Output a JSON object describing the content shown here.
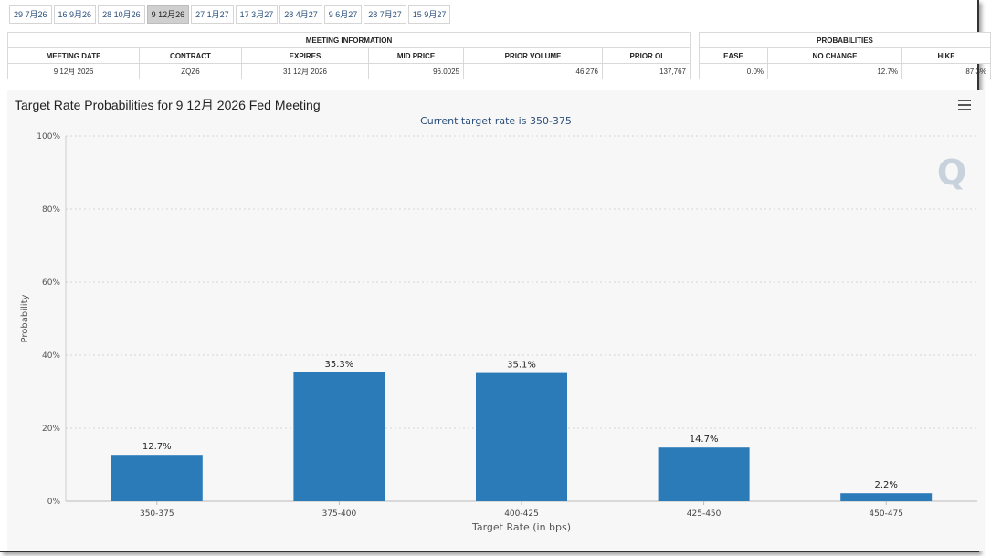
{
  "tabs": [
    "29 7月26",
    "16 9月26",
    "28 10月26",
    "9 12月26",
    "27 1月27",
    "17 3月27",
    "28 4月27",
    "9 6月27",
    "28 7月27",
    "15 9月27"
  ],
  "active_tab": 3,
  "meeting_info": {
    "header": "MEETING INFORMATION",
    "columns": [
      "MEETING DATE",
      "CONTRACT",
      "EXPIRES",
      "MID PRICE",
      "PRIOR VOLUME",
      "PRIOR OI"
    ],
    "row": [
      "9 12月 2026",
      "ZQZ6",
      "31 12月 2026",
      "96.0025",
      "46,276",
      "137,767"
    ]
  },
  "probabilities": {
    "header": "PROBABILITIES",
    "columns": [
      "EASE",
      "NO CHANGE",
      "HIKE"
    ],
    "row": [
      "0.0%",
      "12.7%",
      "87.3%"
    ]
  },
  "chart": {
    "title": "Target Rate Probabilities for 9 12月 2026 Fed Meeting",
    "subtitle": "Current target rate is 350-375",
    "watermark": "Q",
    "menu_icon": "hamburger-menu-icon",
    "bar_color": "#2b7bb9"
  },
  "chart_data": {
    "type": "bar",
    "categories": [
      "350-375",
      "375-400",
      "400-425",
      "425-450",
      "450-475"
    ],
    "values": [
      12.7,
      35.3,
      35.1,
      14.7,
      2.2
    ],
    "data_labels": [
      "12.7%",
      "35.3%",
      "35.1%",
      "14.7%",
      "2.2%"
    ],
    "title": "Target Rate Probabilities for 9 12月 2026 Fed Meeting",
    "subtitle": "Current target rate is 350-375",
    "xlabel": "Target Rate (in bps)",
    "ylabel": "Probability",
    "ylim": [
      0,
      100
    ],
    "yticks": [
      "0%",
      "20%",
      "40%",
      "60%",
      "80%",
      "100%"
    ],
    "grid": true
  }
}
